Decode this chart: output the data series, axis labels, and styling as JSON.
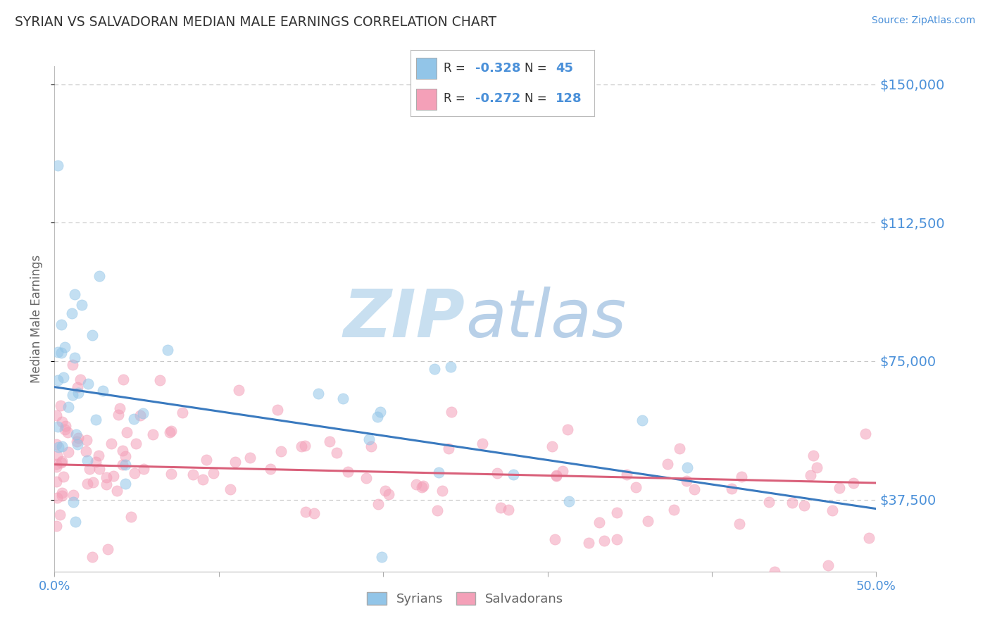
{
  "title": "SYRIAN VS SALVADORAN MEDIAN MALE EARNINGS CORRELATION CHART",
  "source": "Source: ZipAtlas.com",
  "ylabel": "Median Male Earnings",
  "xlim": [
    0,
    0.5
  ],
  "ylim": [
    18000,
    155000
  ],
  "yticks": [
    37500,
    75000,
    112500,
    150000
  ],
  "yticklabels": [
    "$37,500",
    "$75,000",
    "$112,500",
    "$150,000"
  ],
  "xtick_positions": [
    0.0,
    0.1,
    0.2,
    0.3,
    0.4,
    0.5
  ],
  "xticklabels": [
    "0.0%",
    "",
    "",
    "",
    "",
    "50.0%"
  ],
  "syrian_color": "#92c5e8",
  "salvadoran_color": "#f4a0b8",
  "syrian_line_color": "#3a7abf",
  "salvadoran_line_color": "#d9607a",
  "syrian_R": -0.328,
  "syrian_N": 45,
  "salvadoran_R": -0.272,
  "salvadoran_N": 128,
  "background_color": "#ffffff",
  "grid_color": "#c8c8c8",
  "title_color": "#333333",
  "axis_label_color": "#666666",
  "tick_label_color": "#4a90d9",
  "watermark_zip": "ZIP",
  "watermark_atlas": "atlas",
  "watermark_color_zip": "#c8dff0",
  "watermark_color_atlas": "#b8d0e8"
}
